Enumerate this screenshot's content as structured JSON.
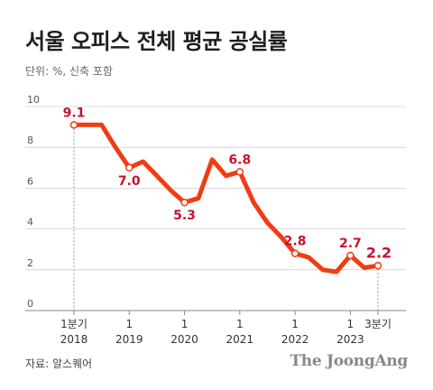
{
  "title": "서울 오피스 전체 평균 공실률",
  "subtitle": "단위: %, 신축 포함",
  "source": "자료: 알스퀘어",
  "brand": "The JoongAng",
  "colors": {
    "line": "#f03c14",
    "label": "#c8102e",
    "grid": "#d0d0d0",
    "axis": "#888888"
  },
  "chart_data": {
    "type": "line",
    "title": "서울 오피스 전체 평균 공실률",
    "ylabel": "",
    "xlabel": "",
    "ylim": [
      0,
      10
    ],
    "yticks": [
      0,
      2,
      4,
      6,
      8,
      10
    ],
    "grid": true,
    "legend": "none",
    "xtick_labels": [
      {
        "t": 0,
        "line1": "1분기",
        "line2": "2018"
      },
      {
        "t": 4,
        "line1": "1",
        "line2": "2019"
      },
      {
        "t": 8,
        "line1": "1",
        "line2": "2020"
      },
      {
        "t": 12,
        "line1": "1",
        "line2": "2021"
      },
      {
        "t": 16,
        "line1": "1",
        "line2": "2022"
      },
      {
        "t": 20,
        "line1": "1",
        "line2": "2023"
      },
      {
        "t": 22,
        "line1": "3분기",
        "line2": ""
      }
    ],
    "series": [
      {
        "values": [
          9.1,
          9.1,
          9.1,
          8.0,
          7.0,
          7.3,
          6.6,
          5.9,
          5.3,
          5.5,
          7.4,
          6.6,
          6.8,
          5.3,
          4.3,
          3.6,
          2.8,
          2.6,
          2.0,
          1.9,
          2.7,
          2.1,
          2.2
        ],
        "labeled_points": [
          {
            "i": 0,
            "label": "9.1",
            "pos": "above"
          },
          {
            "i": 4,
            "label": "7.0",
            "pos": "below"
          },
          {
            "i": 8,
            "label": "5.3",
            "pos": "below"
          },
          {
            "i": 12,
            "label": "6.8",
            "pos": "above"
          },
          {
            "i": 16,
            "label": "2.8",
            "pos": "above"
          },
          {
            "i": 20,
            "label": "2.7",
            "pos": "above"
          },
          {
            "i": 22,
            "label": "2.2",
            "pos": "above"
          }
        ]
      }
    ]
  }
}
